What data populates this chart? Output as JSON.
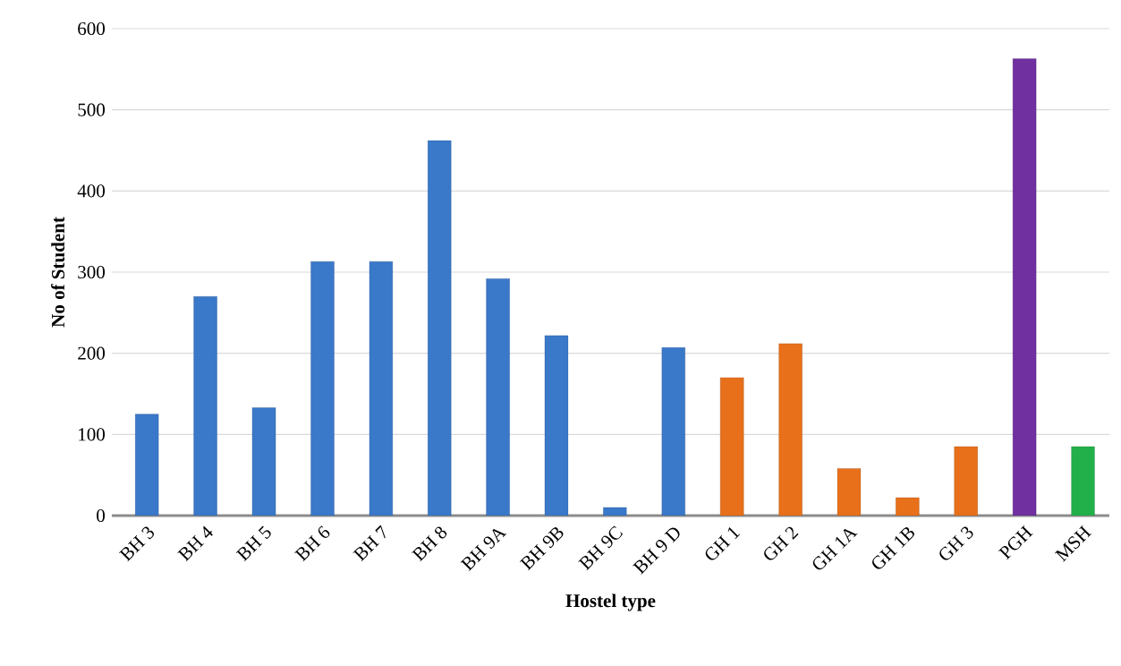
{
  "chart_data": {
    "type": "bar",
    "xlabel": "Hostel type",
    "ylabel": "No of Student",
    "categories": [
      "BH 3",
      "BH 4",
      "BH 5",
      "BH 6",
      "BH 7",
      "BH 8",
      "BH 9A",
      "BH 9B",
      "BH 9C",
      "BH 9 D",
      "GH 1",
      "GH 2",
      "GH 1A",
      "GH 1B",
      "GH 3",
      "PGH",
      "MSH"
    ],
    "values": [
      125,
      270,
      133,
      313,
      313,
      462,
      292,
      222,
      10,
      207,
      170,
      212,
      58,
      22,
      85,
      563,
      85
    ],
    "colors": [
      "#3a78c9",
      "#3a78c9",
      "#3a78c9",
      "#3a78c9",
      "#3a78c9",
      "#3a78c9",
      "#3a78c9",
      "#3a78c9",
      "#3a78c9",
      "#3a78c9",
      "#e8701a",
      "#e8701a",
      "#e8701a",
      "#e8701a",
      "#e8701a",
      "#7030a0",
      "#22b04a"
    ],
    "ylim": [
      0,
      600
    ],
    "yticks": [
      0,
      100,
      200,
      300,
      400,
      500,
      600
    ],
    "grid": "y"
  }
}
